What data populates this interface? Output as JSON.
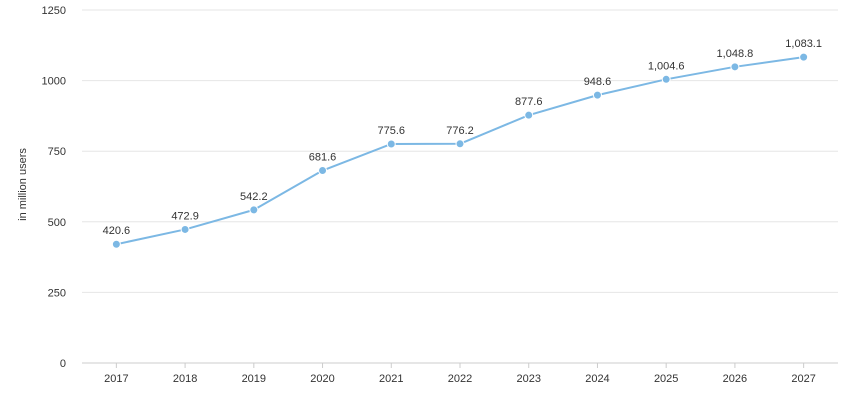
{
  "chart_data": {
    "type": "line",
    "categories": [
      "2017",
      "2018",
      "2019",
      "2020",
      "2021",
      "2022",
      "2023",
      "2024",
      "2025",
      "2026",
      "2027"
    ],
    "series": [
      {
        "values": [
          420.6,
          472.9,
          542.2,
          681.6,
          775.6,
          776.2,
          877.6,
          948.6,
          1004.6,
          1048.8,
          1083.1
        ],
        "labels": [
          "420.6",
          "472.9",
          "542.2",
          "681.6",
          "775.6",
          "776.2",
          "877.6",
          "948.6",
          "1,004.6",
          "1,048.8",
          "1,083.1"
        ]
      }
    ],
    "ylabel": "in million users",
    "ylim": [
      0,
      1250
    ],
    "yticks": [
      0,
      250,
      500,
      750,
      1000,
      1250
    ],
    "ytick_labels": [
      "0",
      "250",
      "500",
      "750",
      "1000",
      "1250"
    ],
    "grid": true,
    "legend": "none",
    "line_color": "#7cb8e4",
    "point_color": "#7cb8e4"
  }
}
